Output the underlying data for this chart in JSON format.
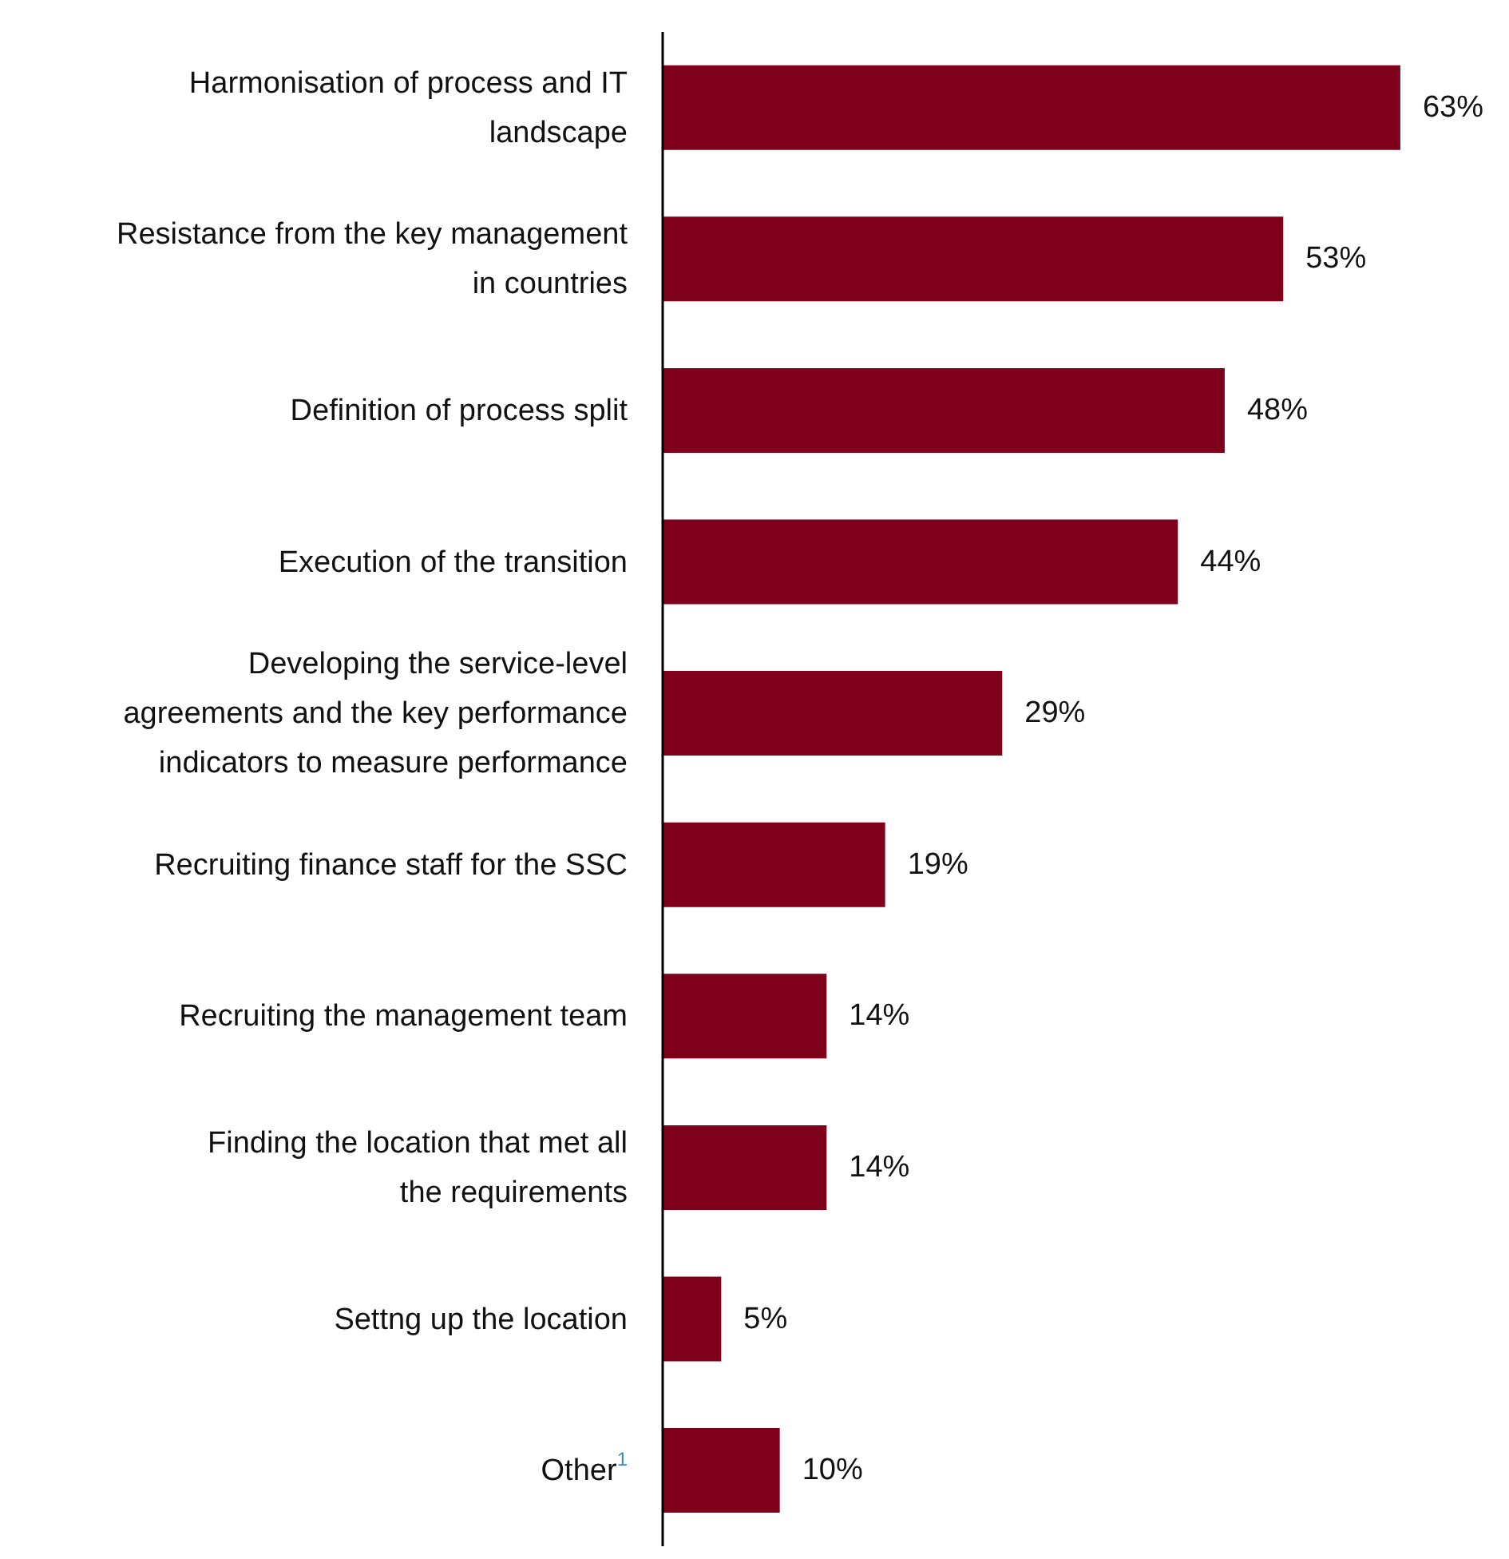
{
  "chart_data": {
    "type": "bar",
    "orientation": "horizontal",
    "categories": [
      "Harmonisation of process and IT landscape",
      "Resistance from the key management in countries",
      "Definition of process split",
      "Execution of the transition",
      "Developing the service-level agreements and the key performance indicators to measure performance",
      "Recruiting finance staff for the SSC",
      "Recruiting the management team",
      "Finding the location that met all the requirements",
      "Settng up the location",
      "Other$^{1}$"
    ],
    "values": [
      63,
      53,
      48,
      44,
      29,
      19,
      14,
      14,
      5,
      10
    ],
    "value_labels": [
      "63%",
      "53%",
      "48%",
      "44%",
      "29%",
      "19%",
      "14%",
      "14%",
      "5%",
      "10%"
    ],
    "color": "#7e001b",
    "grid": false,
    "legend": false
  }
}
